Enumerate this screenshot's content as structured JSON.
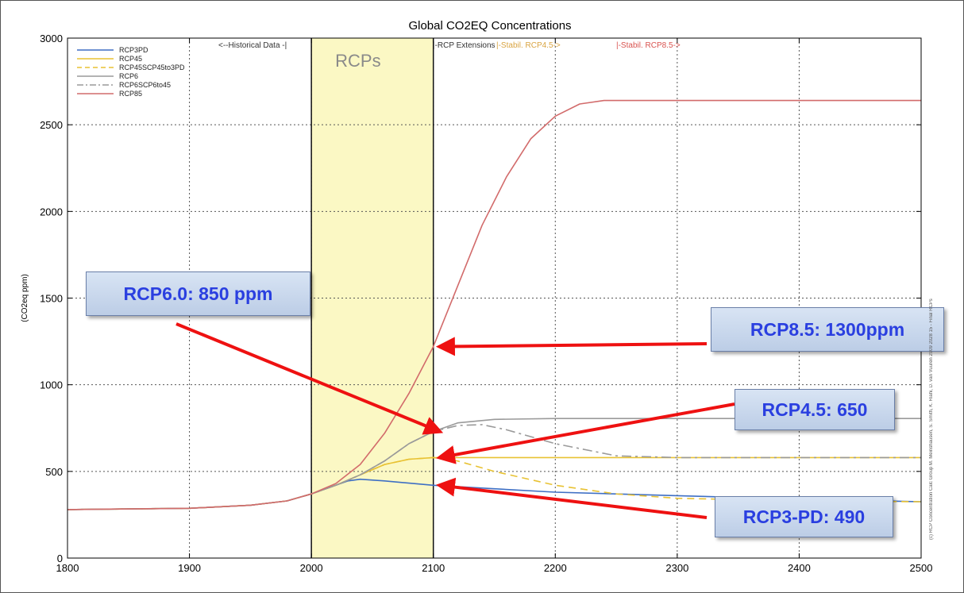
{
  "chart_data": {
    "type": "line",
    "title": "Global CO2EQ  Concentrations",
    "ylabel": "(CO2eq ppm)",
    "xlabel": "",
    "xlim": [
      1800,
      2500
    ],
    "ylim": [
      0,
      3000
    ],
    "x_ticks": [
      1800,
      1900,
      2000,
      2100,
      2200,
      2300,
      2400,
      2500
    ],
    "y_ticks": [
      0,
      500,
      1000,
      1500,
      2000,
      2500,
      3000
    ],
    "grid": true,
    "legend_position": "top-left",
    "highlight_band": {
      "x": [
        2000,
        2100
      ],
      "label": "RCPs",
      "color": "#fbf8c4"
    },
    "region_labels": [
      {
        "text": "<--Historical Data -|",
        "color": "#333333"
      },
      {
        "text": "|-RCP Extensions",
        "color": "#333333"
      },
      {
        "text": "|-Stabil. RCP4.5->",
        "color": "#d9a441"
      },
      {
        "text": "|-Stabil. RCP8.5->",
        "color": "#d9534f"
      }
    ],
    "series": [
      {
        "name": "RCP3PD",
        "color": "#3e6fc4",
        "dash": "solid",
        "points": [
          [
            1800,
            280
          ],
          [
            1900,
            287
          ],
          [
            1950,
            305
          ],
          [
            1980,
            330
          ],
          [
            2000,
            370
          ],
          [
            2020,
            420
          ],
          [
            2030,
            445
          ],
          [
            2040,
            455
          ],
          [
            2060,
            445
          ],
          [
            2100,
            420
          ],
          [
            2150,
            400
          ],
          [
            2200,
            380
          ],
          [
            2300,
            360
          ],
          [
            2400,
            340
          ],
          [
            2500,
            325
          ]
        ]
      },
      {
        "name": "RCP45",
        "color": "#e8c233",
        "dash": "solid",
        "points": [
          [
            1800,
            280
          ],
          [
            1900,
            287
          ],
          [
            1950,
            305
          ],
          [
            1980,
            330
          ],
          [
            2000,
            370
          ],
          [
            2020,
            420
          ],
          [
            2040,
            480
          ],
          [
            2060,
            540
          ],
          [
            2080,
            570
          ],
          [
            2100,
            580
          ],
          [
            2150,
            580
          ],
          [
            2200,
            580
          ],
          [
            2300,
            580
          ],
          [
            2400,
            580
          ],
          [
            2500,
            580
          ]
        ]
      },
      {
        "name": "RCP45SCP45to3PD",
        "color": "#e8c233",
        "dash": "dashed",
        "points": [
          [
            1800,
            280
          ],
          [
            1900,
            287
          ],
          [
            1950,
            305
          ],
          [
            1980,
            330
          ],
          [
            2000,
            370
          ],
          [
            2020,
            420
          ],
          [
            2040,
            480
          ],
          [
            2060,
            540
          ],
          [
            2080,
            570
          ],
          [
            2100,
            580
          ],
          [
            2120,
            560
          ],
          [
            2150,
            500
          ],
          [
            2200,
            420
          ],
          [
            2250,
            370
          ],
          [
            2300,
            345
          ],
          [
            2400,
            330
          ],
          [
            2500,
            325
          ]
        ]
      },
      {
        "name": "RCP6",
        "color": "#9a9a9a",
        "dash": "solid",
        "points": [
          [
            1800,
            280
          ],
          [
            1900,
            287
          ],
          [
            1950,
            305
          ],
          [
            1980,
            330
          ],
          [
            2000,
            370
          ],
          [
            2020,
            420
          ],
          [
            2040,
            480
          ],
          [
            2060,
            560
          ],
          [
            2080,
            660
          ],
          [
            2100,
            730
          ],
          [
            2120,
            780
          ],
          [
            2150,
            800
          ],
          [
            2200,
            805
          ],
          [
            2300,
            805
          ],
          [
            2400,
            805
          ],
          [
            2500,
            805
          ]
        ]
      },
      {
        "name": "RCP6SCP6to45",
        "color": "#9a9a9a",
        "dash": "dashdot",
        "points": [
          [
            1800,
            280
          ],
          [
            1900,
            287
          ],
          [
            1950,
            305
          ],
          [
            1980,
            330
          ],
          [
            2000,
            370
          ],
          [
            2020,
            420
          ],
          [
            2040,
            480
          ],
          [
            2060,
            560
          ],
          [
            2080,
            660
          ],
          [
            2100,
            730
          ],
          [
            2120,
            765
          ],
          [
            2140,
            770
          ],
          [
            2160,
            740
          ],
          [
            2200,
            660
          ],
          [
            2250,
            590
          ],
          [
            2300,
            580
          ],
          [
            2400,
            580
          ],
          [
            2500,
            580
          ]
        ]
      },
      {
        "name": "RCP85",
        "color": "#d26b6b",
        "dash": "solid",
        "points": [
          [
            1800,
            280
          ],
          [
            1900,
            287
          ],
          [
            1950,
            305
          ],
          [
            1980,
            330
          ],
          [
            2000,
            370
          ],
          [
            2020,
            430
          ],
          [
            2040,
            540
          ],
          [
            2060,
            720
          ],
          [
            2080,
            950
          ],
          [
            2100,
            1220
          ],
          [
            2120,
            1570
          ],
          [
            2140,
            1920
          ],
          [
            2160,
            2200
          ],
          [
            2180,
            2420
          ],
          [
            2200,
            2550
          ],
          [
            2220,
            2620
          ],
          [
            2240,
            2640
          ],
          [
            2300,
            2640
          ],
          [
            2400,
            2640
          ],
          [
            2500,
            2640
          ]
        ]
      }
    ],
    "annotations": [
      {
        "text": "RCP6.0: 850 ppm",
        "target": [
          2100,
          730
        ]
      },
      {
        "text": "RCP8.5: 1300ppm",
        "target": [
          2100,
          1220
        ]
      },
      {
        "text": "RCP4.5: 650",
        "target": [
          2100,
          580
        ]
      },
      {
        "text": "RCP3-PD: 490",
        "target": [
          2100,
          420
        ]
      }
    ],
    "side_note": "(c) RCP Concentration Calc Group M. Meinshausen, S. Smith, K. Riahi, D. van Vuuren 2009 2028 15 - Final RCPs"
  }
}
